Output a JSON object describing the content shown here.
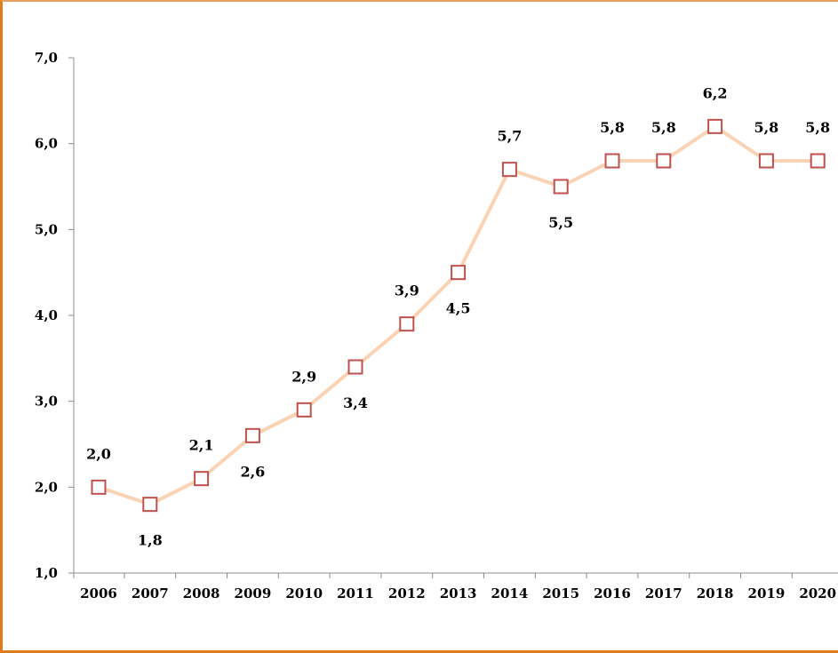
{
  "chart_data": {
    "type": "line",
    "title": "",
    "xlabel": "",
    "ylabel": "",
    "categories": [
      "2006",
      "2007",
      "2008",
      "2009",
      "2010",
      "2011",
      "2012",
      "2013",
      "2014",
      "2015",
      "2016",
      "2017",
      "2018",
      "2019",
      "2020"
    ],
    "series": [
      {
        "values": [
          2.0,
          1.8,
          2.1,
          2.6,
          2.9,
          3.4,
          3.9,
          4.5,
          5.7,
          5.5,
          5.8,
          5.8,
          6.2,
          5.8,
          5.8
        ],
        "labels": [
          "2,0",
          "1,8",
          "2,1",
          "2,6",
          "2,9",
          "3,4",
          "3,9",
          "4,5",
          "5,7",
          "5,5",
          "5,8",
          "5,8",
          "6,2",
          "5,8",
          "5,8"
        ],
        "line_color": "#fad3b4",
        "marker": "square",
        "marker_color": "#c0504d"
      }
    ],
    "ylim": [
      1.0,
      7.0
    ],
    "yticks": [
      1.0,
      2.0,
      3.0,
      4.0,
      5.0,
      6.0,
      7.0
    ],
    "ytick_labels": [
      "1,0",
      "2,0",
      "3,0",
      "4,0",
      "5,0",
      "6,0",
      "7,0"
    ],
    "grid": false,
    "legend": "none",
    "frame_color": "#e07b1a"
  }
}
